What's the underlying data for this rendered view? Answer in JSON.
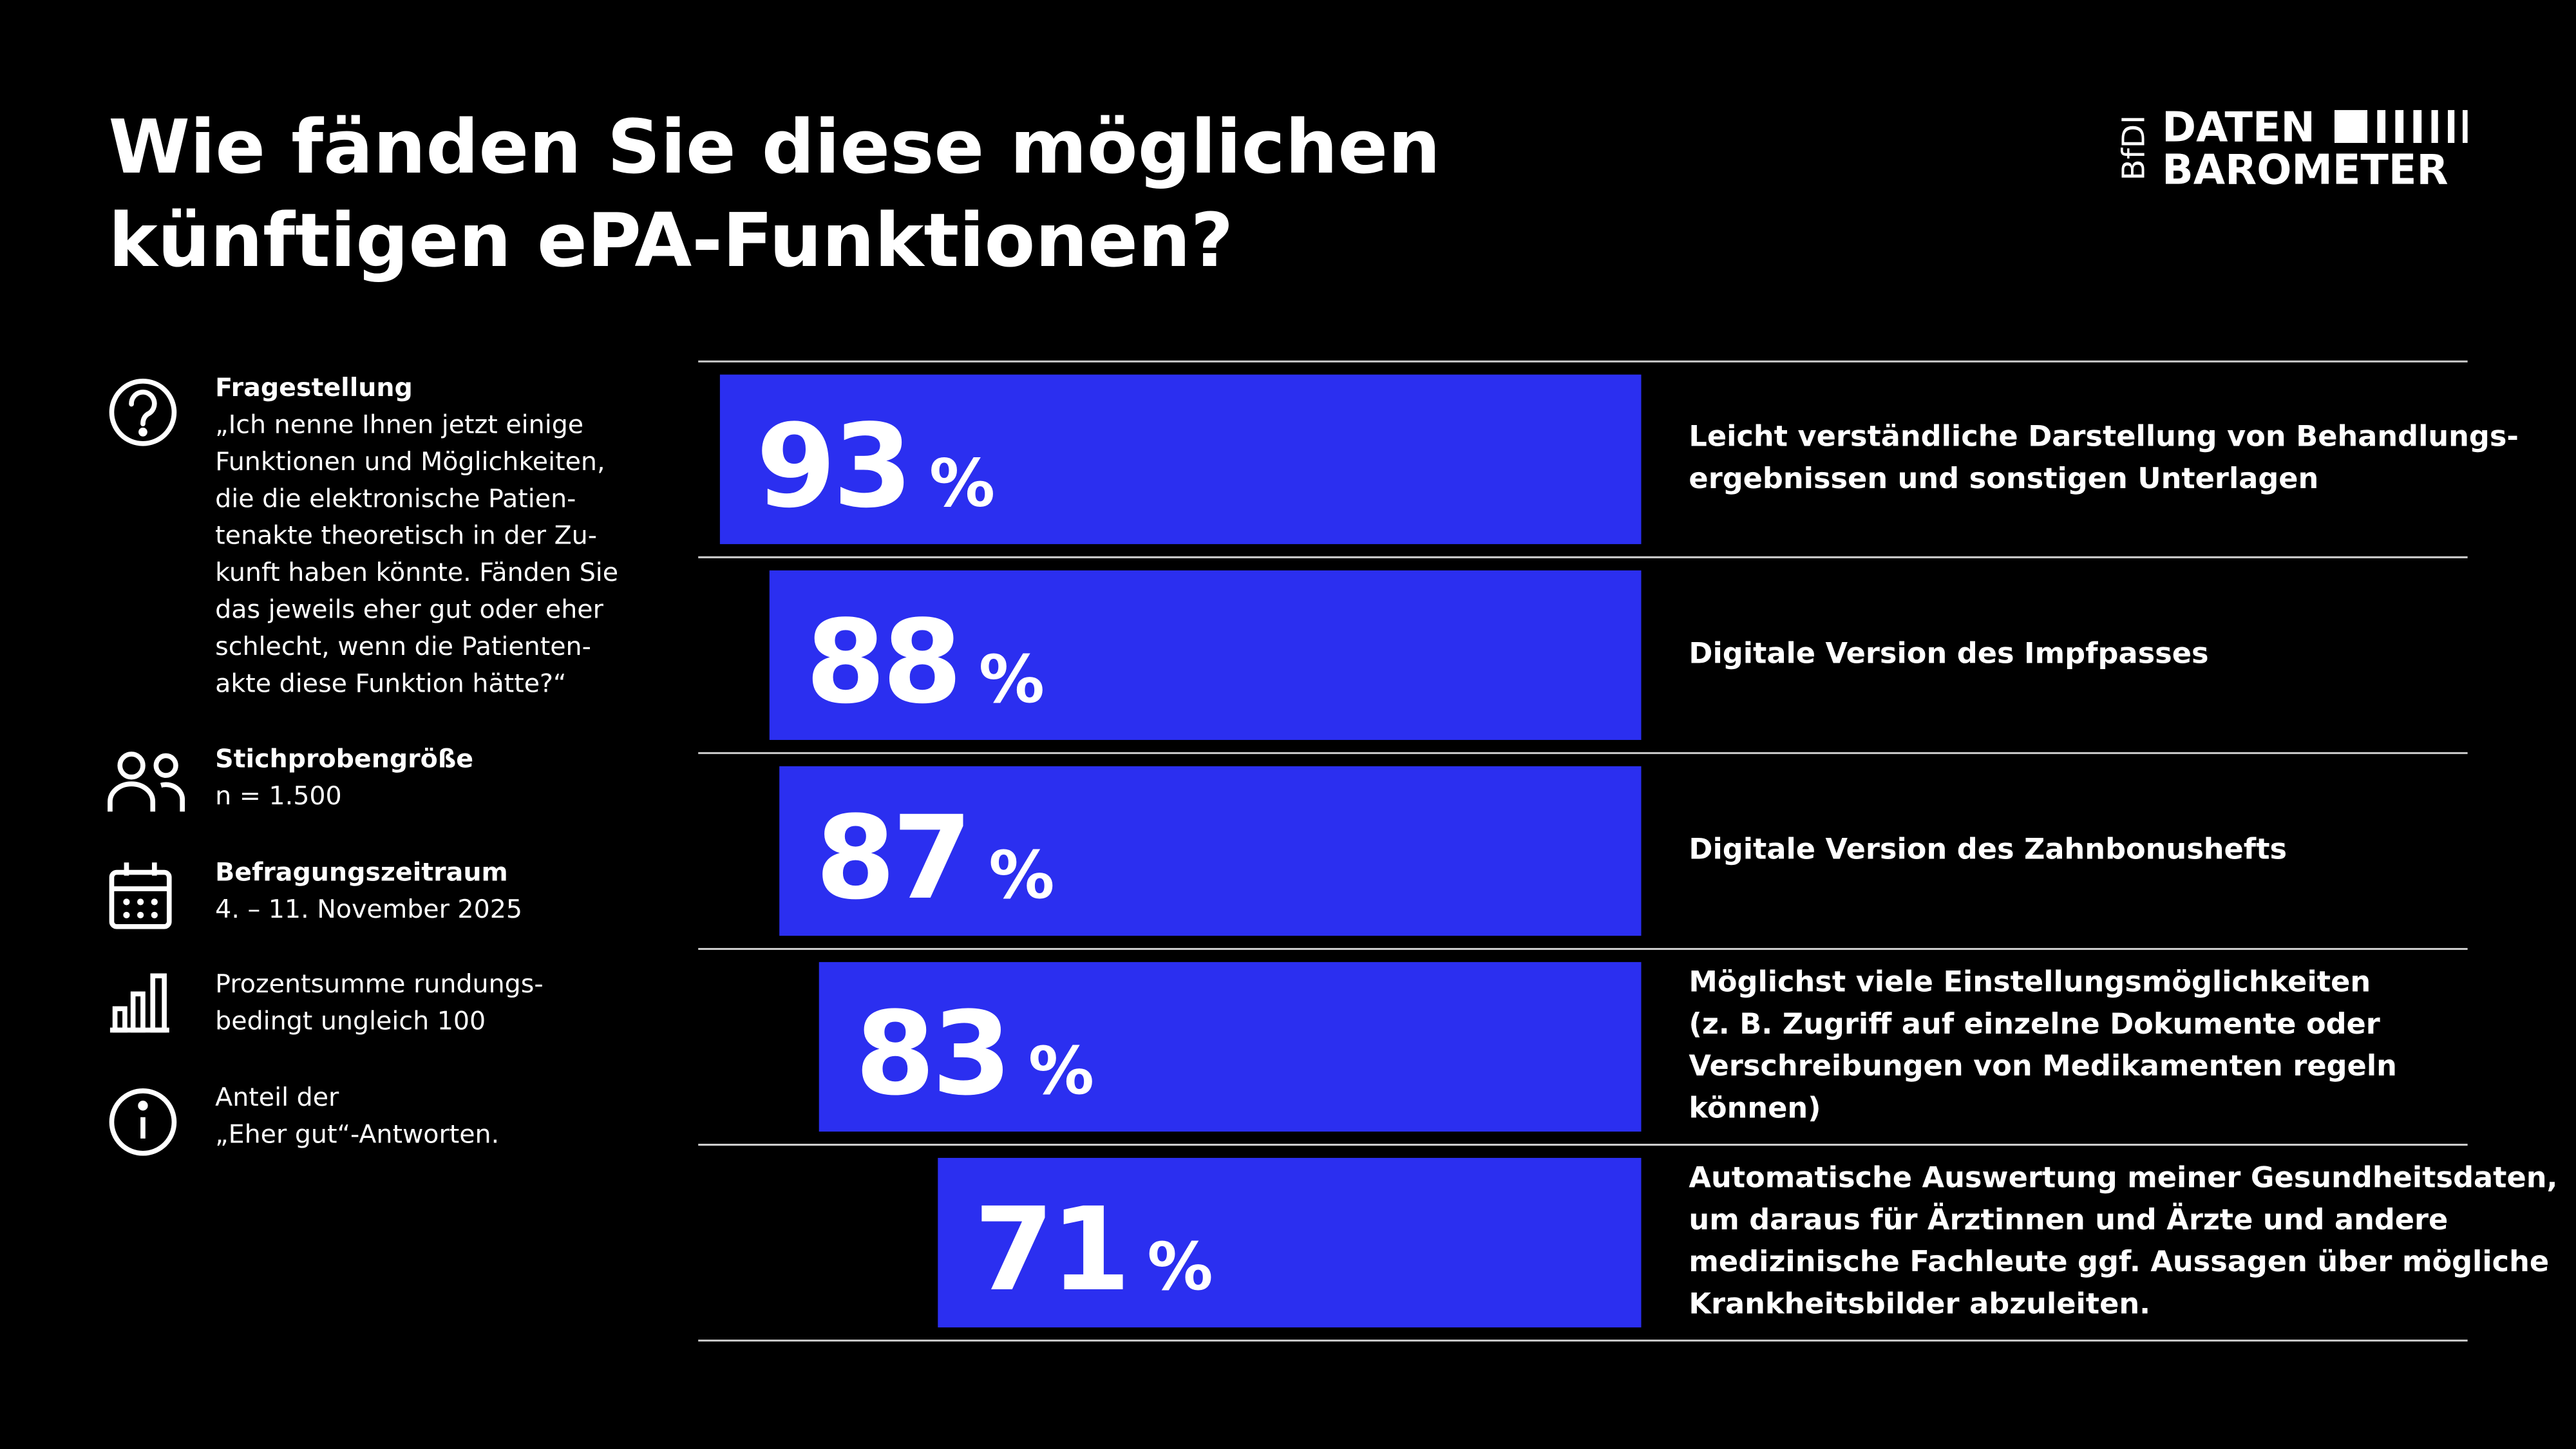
{
  "chart_data": {
    "type": "bar",
    "title": [
      "Wie fänden Sie diese möglichen",
      "künftigen ePA-Funktionen?"
    ],
    "categories": [
      [
        "Leicht verständliche Darstellung von Behandlungs-",
        "ergebnissen und sonstigen Unterlagen"
      ],
      [
        "Digitale Version des Impfpasses"
      ],
      [
        "Digitale Version des Zahnbonushefts"
      ],
      [
        "Möglichst viele Einstellungsmöglichkeiten",
        "(z. B. Zugriff auf einzelne Dokumente oder",
        "Verschreibungen von Medikamenten regeln",
        "können)"
      ],
      [
        "Automatische Auswertung meiner Gesundheitsdaten,",
        "um daraus für Ärztinnen und Ärzte und andere",
        "medizinische Fachleute ggf. Aussagen über mögliche",
        "Krankheitsbilder abzuleiten."
      ]
    ],
    "values": [
      93,
      88,
      87,
      83,
      71
    ],
    "unit": "%",
    "color": "#2b2ff0",
    "xlim": [
      0,
      100
    ]
  },
  "info": [
    {
      "label": "Fragestellung",
      "lines": [
        "„Ich nenne Ihnen jetzt einige",
        "Funktionen und Möglichkeiten,",
        "die die elektronische Patien-",
        "tenakte theoretisch in der Zu-",
        "kunft haben könnte. Fänden Sie",
        "das jeweils eher gut oder eher",
        "schlecht, wenn die Patienten-",
        "akte diese Funktion hätte?“"
      ]
    },
    {
      "label": "Stichprobengröße",
      "lines": [
        "n = 1.500"
      ]
    },
    {
      "label": "Befragungszeitraum",
      "lines": [
        "4. – 11. November 2025"
      ]
    },
    {
      "lines": [
        "Prozentsumme rundungs-",
        "bedingt ungleich 100"
      ]
    },
    {
      "lines": [
        "Anteil der",
        "„Eher gut“-Antworten."
      ]
    }
  ],
  "logo": {
    "org": "BfDI",
    "line1": "DATEN",
    "line2": "BAROMETER"
  }
}
